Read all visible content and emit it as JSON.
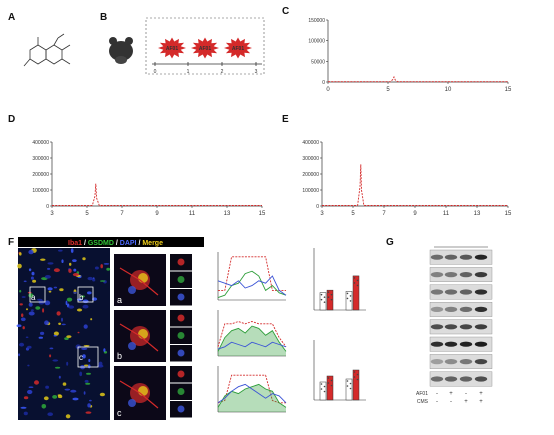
{
  "panels": {
    "A": {
      "letter": "A",
      "caption_line1": "",
      "caption_line2": ""
    },
    "B": {
      "letter": "B",
      "dashed_box_label": "",
      "animal_line1": "",
      "animal_line2": "",
      "bursts": [
        "AF01",
        "AF01",
        "AF01"
      ],
      "ticks": [
        "0",
        "1",
        "2",
        "3"
      ],
      "xaxis_label": ""
    },
    "C": {
      "letter": "C"
    },
    "D": {
      "letter": "D"
    },
    "E": {
      "letter": "E"
    },
    "F": {
      "letter": "F",
      "legend": {
        "iba1": "Iba1",
        "sep1": " / ",
        "gsdmd": "GSDMD",
        "sep2": " / ",
        "dapi": "DAPI",
        "sep3": " / ",
        "merge": "Merge"
      },
      "roi": [
        "a",
        "b",
        "c"
      ],
      "profile_legend": "",
      "profile_xlabel": "",
      "bar_groups": [
        "",
        ""
      ]
    },
    "G": {
      "letter": "G",
      "title": "",
      "rows": [
        {
          "name": "",
          "kda": ""
        },
        {
          "name": "",
          "kda": ""
        },
        {
          "name": "",
          "kda": ""
        },
        {
          "name": "",
          "kda": ""
        },
        {
          "name": "",
          "kda": ""
        },
        {
          "name": "",
          "kda": ""
        },
        {
          "name": "",
          "kda": ""
        },
        {
          "name": "",
          "kda": ""
        }
      ],
      "row_af01": {
        "label": "AF01",
        "marks": [
          "-",
          "+",
          "-",
          "+"
        ]
      },
      "row_cms": {
        "label": "CMS",
        "marks": [
          "-",
          "-",
          "+",
          "+"
        ]
      }
    }
  },
  "colors": {
    "red": "#d42a2a",
    "blue": "#3b54d6",
    "green": "#2e9e3a",
    "merge": "#e6c619"
  },
  "chart_data": [
    {
      "type": "line",
      "panel": "C",
      "title": "",
      "xlabel": "",
      "ylabel": "",
      "xlim": [
        0,
        15
      ],
      "ylim": [
        0,
        150000
      ],
      "xticks": [
        0,
        5,
        10,
        15
      ],
      "xtick_labels": [
        "0",
        "5",
        "10",
        "15"
      ],
      "yticks": [
        0,
        50000,
        100000,
        150000
      ],
      "ytick_labels": [
        "0",
        "50000",
        "100000",
        "150000"
      ],
      "series": [
        {
          "color": "#d42a2a",
          "x": [
            0,
            5.2,
            5.4,
            5.5,
            5.6,
            5.8,
            15
          ],
          "y": [
            800,
            800,
            6000,
            12000,
            5000,
            800,
            800
          ]
        }
      ],
      "peak": {
        "label": "",
        "x": 5.5,
        "y": 12000
      }
    },
    {
      "type": "line",
      "panel": "D",
      "title": "",
      "xlabel": "",
      "ylabel": "",
      "xlim": [
        3,
        15
      ],
      "ylim": [
        0,
        400000
      ],
      "xticks": [
        3,
        5,
        7,
        9,
        11,
        13,
        15
      ],
      "xtick_labels": [
        "3",
        "5",
        "7",
        "9",
        "11",
        "13",
        "15"
      ],
      "yticks": [
        0,
        100000,
        200000,
        300000,
        400000
      ],
      "ytick_labels": [
        "0",
        "100000",
        "200000",
        "300000",
        "400000"
      ],
      "series": [
        {
          "color": "#d42a2a",
          "x": [
            3,
            5.3,
            5.45,
            5.5,
            5.55,
            5.7,
            15
          ],
          "y": [
            3000,
            3000,
            60000,
            140000,
            50000,
            3000,
            3000
          ]
        }
      ],
      "peak": {
        "label": "",
        "x": 5.5,
        "y": 140000
      }
    },
    {
      "type": "line",
      "panel": "E",
      "title": "",
      "xlabel": "",
      "ylabel": "",
      "xlim": [
        3,
        15
      ],
      "ylim": [
        0,
        400000
      ],
      "xticks": [
        3,
        5,
        7,
        9,
        11,
        13,
        15
      ],
      "xtick_labels": [
        "3",
        "5",
        "7",
        "9",
        "11",
        "13",
        "15"
      ],
      "yticks": [
        0,
        100000,
        200000,
        300000,
        400000
      ],
      "ytick_labels": [
        "0",
        "100000",
        "200000",
        "300000",
        "400000"
      ],
      "series": [
        {
          "color": "#d42a2a",
          "x": [
            3,
            5.3,
            5.45,
            5.5,
            5.55,
            5.7,
            15
          ],
          "y": [
            3000,
            3000,
            120000,
            260000,
            100000,
            3000,
            3000
          ]
        }
      ],
      "peak": {
        "label": "",
        "x": 5.5,
        "y": 260000
      }
    },
    {
      "type": "line",
      "panel": "F-profile-a",
      "xlim": [
        0,
        10
      ],
      "ylim": [
        0,
        100
      ],
      "series": [
        {
          "color": "#d42a2a",
          "x": [
            0,
            1,
            2,
            3,
            4,
            5,
            6,
            7,
            8,
            9,
            10
          ],
          "y": [
            20,
            20,
            90,
            90,
            90,
            90,
            90,
            90,
            20,
            20,
            20
          ]
        },
        {
          "color": "#2e9e3a",
          "x": [
            0,
            1,
            2,
            3,
            4,
            5,
            6,
            7,
            8,
            9,
            10
          ],
          "y": [
            5,
            10,
            30,
            35,
            55,
            60,
            50,
            20,
            30,
            15,
            10
          ]
        },
        {
          "color": "#3b54d6",
          "x": [
            0,
            1,
            2,
            3,
            4,
            5,
            6,
            7,
            8,
            9,
            10
          ],
          "y": [
            40,
            35,
            30,
            40,
            25,
            30,
            40,
            35,
            50,
            20,
            10
          ]
        }
      ]
    },
    {
      "type": "area",
      "panel": "F-profile-b",
      "xlim": [
        0,
        10
      ],
      "ylim": [
        0,
        100
      ],
      "series": [
        {
          "color": "#d42a2a",
          "x": [
            0,
            1,
            2,
            3,
            4,
            5,
            6,
            7,
            8,
            9,
            10
          ],
          "y": [
            20,
            70,
            70,
            75,
            70,
            75,
            70,
            70,
            70,
            40,
            20
          ]
        },
        {
          "color": "#2e9e3a",
          "x": [
            0,
            1,
            2,
            3,
            4,
            5,
            6,
            7,
            8,
            9,
            10
          ],
          "y": [
            10,
            40,
            55,
            60,
            50,
            65,
            60,
            45,
            55,
            30,
            10
          ]
        },
        {
          "color": "#3b54d6",
          "x": [
            0,
            1,
            2,
            3,
            4,
            5,
            6,
            7,
            8,
            9,
            10
          ],
          "y": [
            15,
            20,
            30,
            25,
            20,
            30,
            25,
            20,
            30,
            25,
            20
          ]
        }
      ]
    },
    {
      "type": "area",
      "panel": "F-profile-c",
      "xlim": [
        0,
        10
      ],
      "ylim": [
        0,
        100
      ],
      "series": [
        {
          "color": "#d42a2a",
          "x": [
            0,
            1,
            2,
            3,
            4,
            5,
            6,
            7,
            8,
            9,
            10
          ],
          "y": [
            20,
            25,
            80,
            80,
            80,
            80,
            80,
            80,
            25,
            20,
            20
          ]
        },
        {
          "color": "#2e9e3a",
          "x": [
            0,
            1,
            2,
            3,
            4,
            5,
            6,
            7,
            8,
            9,
            10
          ],
          "y": [
            10,
            35,
            45,
            40,
            50,
            55,
            60,
            50,
            45,
            20,
            10
          ]
        },
        {
          "color": "#3b54d6",
          "x": [
            0,
            1,
            2,
            3,
            4,
            5,
            6,
            7,
            8,
            9,
            10
          ],
          "y": [
            20,
            30,
            45,
            55,
            60,
            50,
            40,
            30,
            40,
            35,
            20
          ]
        }
      ]
    },
    {
      "type": "bar",
      "panel": "F-bar-top",
      "categories": [
        "",
        ""
      ],
      "ylim": [
        0,
        100
      ],
      "series": [
        {
          "color": "#ffffff",
          "values": [
            28,
            30
          ]
        },
        {
          "color": "#d42a2a",
          "values": [
            32,
            55
          ]
        }
      ]
    },
    {
      "type": "bar",
      "panel": "F-bar-bottom",
      "categories": [
        "",
        ""
      ],
      "ylim": [
        0,
        100
      ],
      "series": [
        {
          "color": "#ffffff",
          "values": [
            30,
            35
          ]
        },
        {
          "color": "#d42a2a",
          "values": [
            40,
            50
          ]
        }
      ]
    }
  ]
}
